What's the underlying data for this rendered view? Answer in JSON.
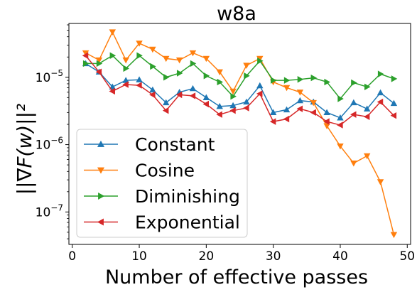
{
  "chart_data": {
    "type": "line",
    "title": "w8a",
    "xlabel": "Number of effective passes",
    "ylabel": "||∇F(w)||²",
    "x_ticks": [
      0,
      10,
      20,
      30,
      40,
      50
    ],
    "y_ticks": [
      {
        "value": 1e-07,
        "base": "10",
        "exp": "−7"
      },
      {
        "value": 1e-06,
        "base": "10",
        "exp": "−6"
      },
      {
        "value": 1e-05,
        "base": "10",
        "exp": "−5"
      }
    ],
    "xlim": [
      -0.5,
      50.5
    ],
    "ylim": [
      3.3e-08,
      6.3e-05
    ],
    "yscale": "log",
    "grid": false,
    "legend_position": "lower-left",
    "x": [
      2,
      4,
      6,
      8,
      10,
      12,
      14,
      16,
      18,
      20,
      22,
      24,
      26,
      28,
      30,
      32,
      34,
      36,
      38,
      40,
      42,
      44,
      46,
      48
    ],
    "series": [
      {
        "name": "Constant",
        "color": "#1f77b4",
        "marker": "triangle-up",
        "values": [
          1.6e-05,
          1.2e-05,
          7.2e-06,
          9e-06,
          9.2e-06,
          6.5e-06,
          4.2e-06,
          6e-06,
          6.8e-06,
          5e-06,
          3.7e-06,
          3.8e-06,
          4.3e-06,
          7.5e-06,
          3e-06,
          3.3e-06,
          4.5e-06,
          4.3e-06,
          3e-06,
          2.5e-06,
          4.2e-06,
          3.4e-06,
          5.9e-06,
          4.1e-06
        ]
      },
      {
        "name": "Cosine",
        "color": "#ff7f0e",
        "marker": "triangle-down",
        "values": [
          2.3e-05,
          1.8e-05,
          4.7e-05,
          1.8e-05,
          3.2e-05,
          2.6e-05,
          1.9e-05,
          1.8e-05,
          2.3e-05,
          1.9e-05,
          1.2e-05,
          6.2e-06,
          1.5e-05,
          1.9e-05,
          8.5e-06,
          7e-06,
          6e-06,
          4.2e-06,
          1.9e-06,
          9.5e-07,
          5.3e-07,
          6.8e-07,
          2.8e-07,
          4.6e-08
        ]
      },
      {
        "name": "Diminishing",
        "color": "#2ca02c",
        "marker": "triangle-right",
        "values": [
          1.6e-05,
          1.6e-05,
          2.1e-05,
          1.35e-05,
          2.1e-05,
          1.45e-05,
          1e-05,
          1.15e-05,
          1.6e-05,
          1.05e-05,
          8.5e-06,
          5.2e-06,
          1.05e-05,
          1.75e-05,
          9e-06,
          9e-06,
          9.3e-06,
          9.8e-06,
          8.5e-06,
          4.8e-06,
          8.3e-06,
          7.2e-06,
          1.12e-05,
          9.5e-06
        ]
      },
      {
        "name": "Exponential",
        "color": "#d62728",
        "marker": "triangle-left",
        "values": [
          2.1e-05,
          1.2e-05,
          6.2e-06,
          7.8e-06,
          7.6e-06,
          5.5e-06,
          3.2e-06,
          5.5e-06,
          5.3e-06,
          4e-06,
          2.8e-06,
          3.2e-06,
          3.5e-06,
          5.7e-06,
          2.2e-06,
          2.4e-06,
          3.4e-06,
          3e-06,
          2.2e-06,
          1.95e-06,
          2.8e-06,
          2.6e-06,
          4.3e-06,
          2.7e-06
        ]
      }
    ]
  }
}
